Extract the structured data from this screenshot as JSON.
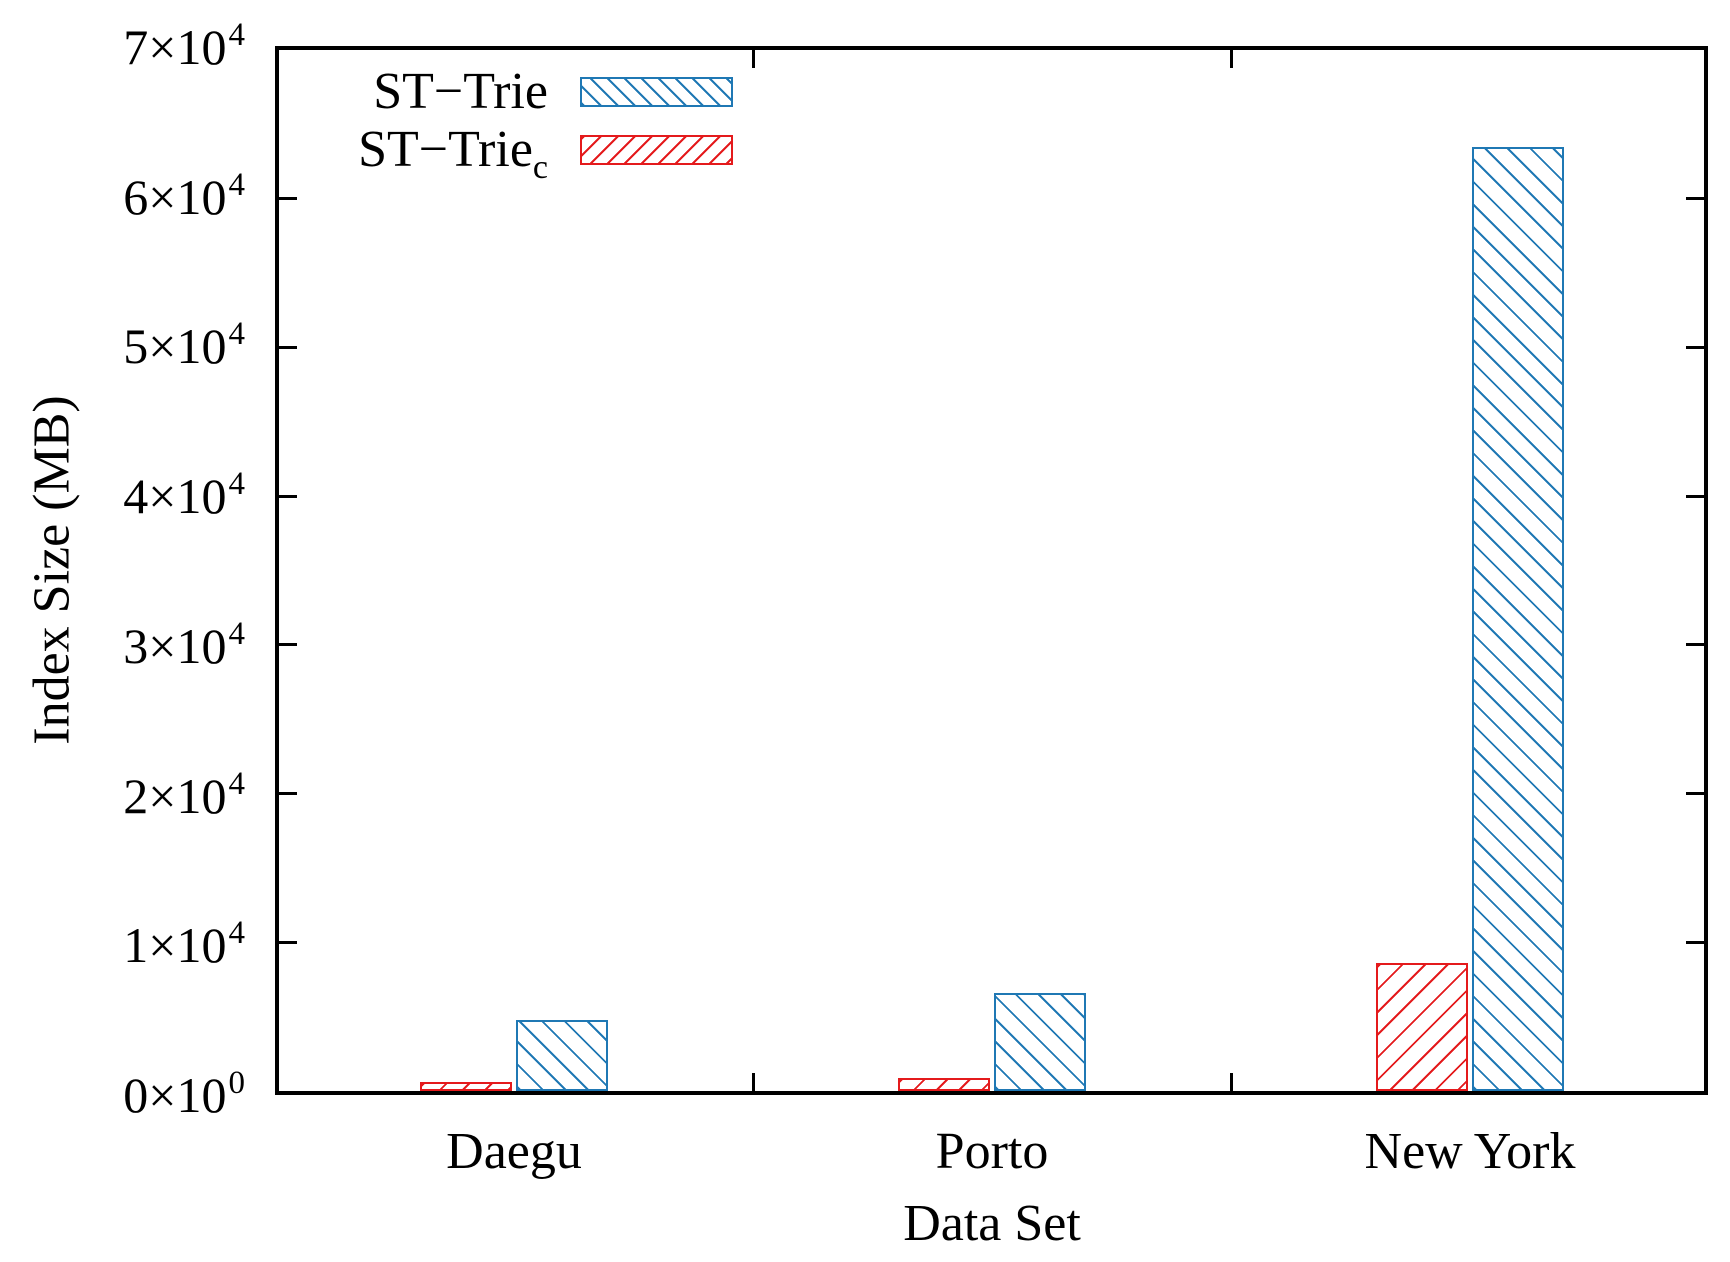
{
  "figure": {
    "background": "#ffffff",
    "border_color": "#000000"
  },
  "yaxis": {
    "label": "Index Size (MB)",
    "ticks": [
      {
        "base": "0×10",
        "exp": "0"
      },
      {
        "base": "1×10",
        "exp": "4"
      },
      {
        "base": "2×10",
        "exp": "4"
      },
      {
        "base": "3×10",
        "exp": "4"
      },
      {
        "base": "4×10",
        "exp": "4"
      },
      {
        "base": "5×10",
        "exp": "4"
      },
      {
        "base": "6×10",
        "exp": "4"
      },
      {
        "base": "7×10",
        "exp": "4"
      }
    ]
  },
  "xaxis": {
    "label": "Data Set",
    "categories": [
      "Daegu",
      "Porto",
      "New York"
    ]
  },
  "legend": {
    "items": [
      {
        "label": "ST−Trie",
        "sub": "",
        "color": "#1f78b4",
        "hatch": "\\"
      },
      {
        "label": "ST−Trie",
        "sub": "c",
        "color": "#e41a1c",
        "hatch": "/"
      }
    ]
  },
  "chart_data": {
    "type": "bar",
    "title": "",
    "xlabel": "Data Set",
    "ylabel": "Index Size (MB)",
    "categories": [
      "Daegu",
      "Porto",
      "New York"
    ],
    "series": [
      {
        "name": "ST-Trie",
        "color": "#1f78b4",
        "hatch": "\\",
        "values": [
          4800,
          6600,
          63500
        ]
      },
      {
        "name": "ST-Trie_c",
        "color": "#e41a1c",
        "hatch": "/",
        "values": [
          600,
          900,
          8600
        ]
      }
    ],
    "ylim": [
      0,
      70000
    ],
    "ytick_values": [
      0,
      10000,
      20000,
      30000,
      40000,
      50000,
      60000,
      70000
    ],
    "grid": false,
    "legend_position": "top-left",
    "bar_order_in_group": [
      "ST-Trie_c",
      "ST-Trie"
    ]
  }
}
